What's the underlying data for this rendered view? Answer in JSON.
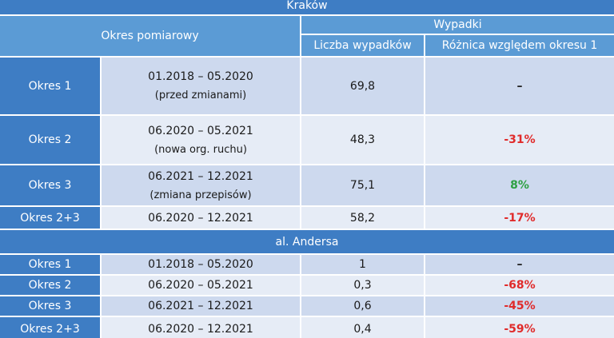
{
  "header": {
    "period_column": "Okres pomiarowy",
    "group": "Wypadki",
    "count_column": "Liczba wypadków",
    "diff_column": "Różnica względem okresu 1"
  },
  "sections": [
    {
      "title": "Kraków",
      "rows": [
        {
          "period": "Okres 1",
          "dates": "01.2018 – 05.2020",
          "note": "(przed zmianami)",
          "count": "69,8",
          "diff": "–",
          "diff_color": "#222222"
        },
        {
          "period": "Okres 2",
          "dates": "06.2020 – 05.2021",
          "note": "(nowa org. ruchu)",
          "count": "48,3",
          "diff": "-31%",
          "diff_color": "#e02b2b"
        },
        {
          "period": "Okres 3",
          "dates": "06.2021 – 12.2021",
          "note": "(zmiana przepisów)",
          "count": "75,1",
          "diff": "8%",
          "diff_color": "#2ea043"
        },
        {
          "period": "Okres 2+3",
          "dates": "06.2020 – 12.2021",
          "count": "58,2",
          "diff": "-17%",
          "diff_color": "#e02b2b"
        }
      ]
    },
    {
      "title": "al. Andersa",
      "rows": [
        {
          "period": "Okres 1",
          "dates": "01.2018 – 05.2020",
          "count": "1",
          "diff": "–",
          "diff_color": "#222222"
        },
        {
          "period": "Okres 2",
          "dates": "06.2020 – 05.2021",
          "count": "0,3",
          "diff": "-68%",
          "diff_color": "#e02b2b"
        },
        {
          "period": "Okres 3",
          "dates": "06.2021 – 12.2021",
          "count": "0,6",
          "diff": "-45%",
          "diff_color": "#e02b2b"
        },
        {
          "period": "Okres 2+3",
          "dates": "06.2020 – 12.2021",
          "count": "0,4",
          "diff": "-59%",
          "diff_color": "#e02b2b"
        }
      ]
    }
  ]
}
